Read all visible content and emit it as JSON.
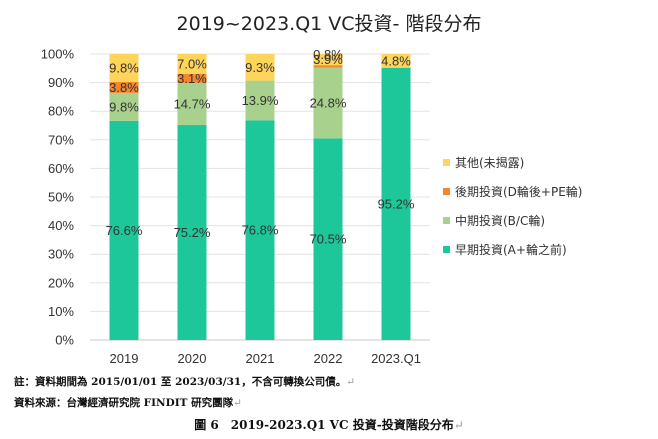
{
  "chart_data": {
    "type": "bar",
    "stacked": true,
    "title": "2019~2023.Q1 VC投資- 階段分布",
    "categories": [
      "2019",
      "2020",
      "2021",
      "2022",
      "2023.Q1"
    ],
    "y_ticks": [
      "0%",
      "10%",
      "20%",
      "30%",
      "40%",
      "50%",
      "60%",
      "70%",
      "80%",
      "90%",
      "100%"
    ],
    "ylim": [
      0,
      100
    ],
    "grid": true,
    "legend_position": "right",
    "series": [
      {
        "name": "早期投資(A+輪之前)",
        "color": "#1DC79A",
        "values": [
          76.6,
          75.2,
          76.8,
          70.5,
          95.2
        ],
        "labels": [
          "76.6%",
          "75.2%",
          "76.8%",
          "70.5%",
          "95.2%"
        ]
      },
      {
        "name": "中期投資(B/C輪)",
        "color": "#A9D18E",
        "values": [
          9.8,
          14.7,
          13.9,
          24.8,
          0
        ],
        "labels": [
          "9.8%",
          "14.7%",
          "13.9%",
          "24.8%",
          ""
        ]
      },
      {
        "name": "後期投資(D輪後+PE輪)",
        "color": "#F4862F",
        "values": [
          3.8,
          3.1,
          0,
          0.8,
          0
        ],
        "labels": [
          "3.8%",
          "3.1%",
          "",
          "0.8%",
          ""
        ]
      },
      {
        "name": "其他(未揭露)",
        "color": "#FFD45A",
        "values": [
          9.8,
          7.0,
          9.3,
          3.9,
          4.8
        ],
        "labels": [
          "9.8%",
          "7.0%",
          "9.3%",
          "3.9%",
          "4.8%"
        ]
      }
    ]
  },
  "notes": {
    "period": "註：資料期間為 2015/01/01 至 2023/03/31，不含可轉換公司債。",
    "source": "資料來源：台灣經濟研究院 FINDIT 研究團隊",
    "return_mark": "↵"
  },
  "caption": "圖 6　2019-2023.Q1 VC 投資-投資階段分布"
}
